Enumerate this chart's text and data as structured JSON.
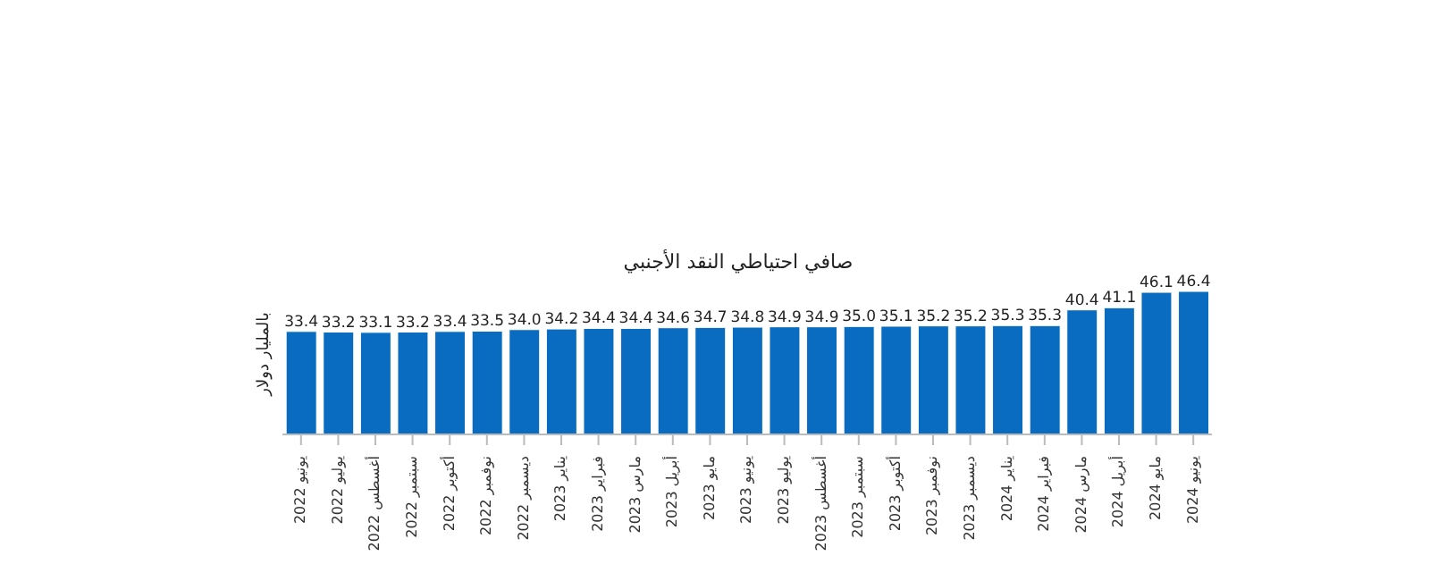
{
  "chart_data": {
    "type": "bar",
    "title": "صافي احتياطي النقد الأجنبي",
    "ylabel": "بالمليار دولار",
    "categories": [
      "يونيو 2022",
      "يوليو 2022",
      "أغسطس 2022",
      "سبتمبر 2022",
      "أكتوبر 2022",
      "نوفمبر 2022",
      "ديسمبر 2022",
      "يناير 2023",
      "فبراير 2023",
      "مارس 2023",
      "أبريل 2023",
      "مايو 2023",
      "يونيو 2023",
      "يوليو 2023",
      "أغسطس 2023",
      "سبتمبر 2023",
      "أكتوبر 2023",
      "نوفمبر 2023",
      "ديسمبر 2023",
      "يناير 2024",
      "فبراير 2024",
      "مارس 2024",
      "أبريل 2024",
      "مايو 2024",
      "يونيو 2024"
    ],
    "values": [
      33.4,
      33.2,
      33.1,
      33.2,
      33.4,
      33.5,
      34.0,
      34.2,
      34.4,
      34.4,
      34.6,
      34.7,
      34.8,
      34.9,
      34.9,
      35.0,
      35.1,
      35.2,
      35.2,
      35.3,
      35.3,
      40.4,
      41.1,
      46.1,
      46.4
    ],
    "value_labels": [
      "33.4",
      "33.2",
      "33.1",
      "33.2",
      "33.4",
      "33.5",
      "34.0",
      "34.2",
      "34.4",
      "34.4",
      "34.6",
      "34.7",
      "34.8",
      "34.9",
      "34.9",
      "35.0",
      "35.1",
      "35.2",
      "35.2",
      "35.3",
      "35.3",
      "40.4",
      "41.1",
      "46.1",
      "46.4"
    ],
    "color": "#0a6cc0",
    "tick_labels": "x"
  }
}
